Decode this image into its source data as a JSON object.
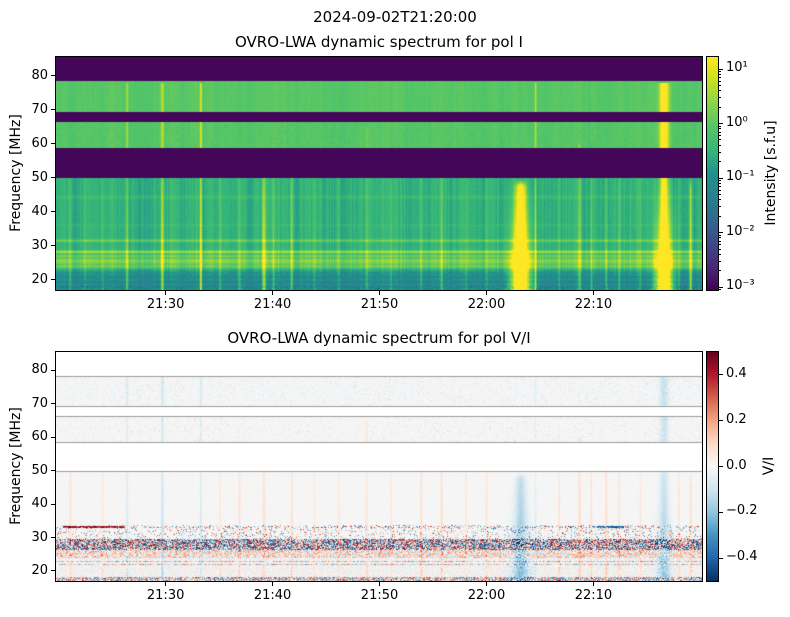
{
  "figure": {
    "suptitle": "2024-09-02T21:20:00",
    "background": "#ffffff"
  },
  "panels": [
    {
      "title": "OVRO-LWA dynamic spectrum for pol I",
      "ylabel": "Frequency [MHz]",
      "yticks": [
        20,
        30,
        40,
        50,
        60,
        70,
        80
      ],
      "xticks": [
        {
          "label": "21:30",
          "min": 10
        },
        {
          "label": "21:40",
          "min": 20
        },
        {
          "label": "21:50",
          "min": 30
        },
        {
          "label": "22:00",
          "min": 40
        },
        {
          "label": "22:10",
          "min": 50
        }
      ],
      "colorbar": {
        "label": "Intensity [s.f.u]",
        "cmap": "viridis",
        "scale": "log",
        "ticks": [
          {
            "label": "10¹",
            "log": 1
          },
          {
            "label": "10⁰",
            "log": 0
          },
          {
            "label": "10⁻¹",
            "log": -1
          },
          {
            "label": "10⁻²",
            "log": -2
          },
          {
            "label": "10⁻³",
            "log": -3
          }
        ]
      }
    },
    {
      "title": "OVRO-LWA dynamic spectrum for pol V/I",
      "ylabel": "Frequency [MHz]",
      "yticks": [
        20,
        30,
        40,
        50,
        60,
        70,
        80
      ],
      "xticks": [
        {
          "label": "21:30",
          "min": 10
        },
        {
          "label": "21:40",
          "min": 20
        },
        {
          "label": "21:50",
          "min": 30
        },
        {
          "label": "22:00",
          "min": 40
        },
        {
          "label": "22:10",
          "min": 50
        }
      ],
      "colorbar": {
        "label": "V/I",
        "cmap": "RdBu_r",
        "scale": "linear",
        "ticks": [
          {
            "label": "0.4",
            "value": 0.4
          },
          {
            "label": "0.2",
            "value": 0.2
          },
          {
            "label": "0.0",
            "value": 0.0
          },
          {
            "label": "−0.2",
            "value": -0.2
          },
          {
            "label": "−0.4",
            "value": -0.4
          }
        ]
      }
    }
  ],
  "chart_data": {
    "type": "heatmap",
    "title": "OVRO-LWA dynamic spectra (Stokes I and V/I)",
    "time_start": "21:20",
    "time_end": "22:20",
    "axis_cal": {
      "t0": -0.25,
      "t1": 60.15
    },
    "freq_range_mhz": [
      17.0,
      85.5
    ],
    "masked_bands_mhz": [
      [
        50.0,
        58.6
      ],
      [
        66.4,
        69.3
      ],
      [
        78.3,
        85.5
      ]
    ],
    "intensity_scale": {
      "type": "log",
      "min_sfu": 0.001,
      "max_sfu": 16,
      "units": "s.f.u",
      "cbar_log_top": 1.22,
      "cbar_log_bottom": -3.05
    },
    "vi_scale": {
      "min": -0.5,
      "max": 0.5
    },
    "rfi_lines": [
      {
        "f": 31.5,
        "a": 0.16,
        "w": 0.4
      },
      {
        "f": 28.2,
        "a": 0.26,
        "w": 0.4
      },
      {
        "f": 27.0,
        "a": 0.14,
        "w": 0.35
      },
      {
        "f": 25.5,
        "a": 0.17,
        "w": 0.9
      },
      {
        "f": 23.9,
        "a": 0.12,
        "w": 0.5
      },
      {
        "f": 44.3,
        "a": 0.05,
        "w": 0.5
      },
      {
        "f": 36.0,
        "a": 0.03,
        "w": 0.4
      },
      {
        "f": 20.8,
        "a": -0.05,
        "w": 0.3
      },
      {
        "f": 19.3,
        "a": -0.06,
        "w": 0.35
      },
      {
        "f": 18.0,
        "a": -0.05,
        "w": 0.3
      }
    ],
    "vi_features": {
      "red_line_mhz": 33.3,
      "red_line_t_min": [
        0.4,
        6.2
      ],
      "cyan_segment_mhz": 33.2,
      "cyan_segment_t_min": [
        50.3,
        52.9
      ],
      "speckle_bands_mhz": [
        [
          26.3,
          29.5
        ],
        [
          29.5,
          33.8
        ],
        [
          24.0,
          26.3
        ],
        [
          21.5,
          24.0
        ],
        [
          17.0,
          18.3
        ]
      ]
    },
    "events": [
      {
        "t": 1.1,
        "time": "21:21",
        "a": 0.18,
        "w": 0.12,
        "fhi": 50,
        "vi": 1,
        "va": 0.1
      },
      {
        "t": 2.5,
        "time": "21:22",
        "a": 0.1,
        "w": 0.1,
        "fhi": 50,
        "vi": 0,
        "va": 0.0
      },
      {
        "t": 4.1,
        "time": "21:24",
        "a": 0.14,
        "w": 0.1,
        "fhi": 50,
        "vi": 1,
        "va": 0.08
      },
      {
        "t": 6.4,
        "time": "21:26",
        "a": 0.3,
        "w": 0.12,
        "fhi": 78,
        "vi": -1,
        "va": 0.1
      },
      {
        "t": 9.7,
        "time": "21:30",
        "a": 0.38,
        "w": 0.14,
        "fhi": 78,
        "vi": -1,
        "va": 0.14
      },
      {
        "t": 13.3,
        "time": "21:33",
        "a": 0.5,
        "w": 0.1,
        "fhi": 78,
        "vi": -1,
        "va": 0.12
      },
      {
        "t": 15.1,
        "time": "21:35",
        "a": 0.15,
        "w": 0.1,
        "fhi": 50,
        "vi": 1,
        "va": 0.08
      },
      {
        "t": 16.9,
        "time": "21:37",
        "a": 0.22,
        "w": 0.12,
        "fhi": 50,
        "vi": 1,
        "va": 0.1
      },
      {
        "t": 19.2,
        "time": "21:39",
        "a": 0.42,
        "w": 0.16,
        "fhi": 55,
        "vi": 1,
        "va": 0.1
      },
      {
        "t": 20.1,
        "time": "21:40",
        "a": 0.16,
        "w": 0.1,
        "fhi": 50,
        "vi": 0,
        "va": 0.0
      },
      {
        "t": 21.8,
        "time": "21:42",
        "a": 0.24,
        "w": 0.12,
        "fhi": 50,
        "vi": 1,
        "va": 0.1
      },
      {
        "t": 23.9,
        "time": "21:44",
        "a": 0.13,
        "w": 0.1,
        "fhi": 50,
        "vi": 1,
        "va": 0.07
      },
      {
        "t": 26.2,
        "time": "21:46",
        "a": 0.13,
        "w": 0.1,
        "fhi": 50,
        "vi": 1,
        "va": 0.08
      },
      {
        "t": 28.8,
        "time": "21:49",
        "a": 0.15,
        "w": 0.12,
        "fhi": 65,
        "vi": 1,
        "va": 0.09
      },
      {
        "t": 31.1,
        "time": "21:51",
        "a": 0.13,
        "w": 0.1,
        "fhi": 50,
        "vi": 1,
        "va": 0.08
      },
      {
        "t": 33.9,
        "time": "21:54",
        "a": 0.17,
        "w": 0.1,
        "fhi": 50,
        "vi": 1,
        "va": 0.12
      },
      {
        "t": 35.8,
        "time": "21:56",
        "a": 0.2,
        "w": 0.12,
        "fhi": 50,
        "vi": 1,
        "va": 0.12
      },
      {
        "t": 38.1,
        "time": "21:58",
        "a": 0.13,
        "w": 0.1,
        "fhi": 50,
        "vi": 1,
        "va": 0.09
      },
      {
        "t": 40.0,
        "time": "22:00",
        "a": 0.15,
        "w": 0.1,
        "fhi": 50,
        "vi": 1,
        "va": 0.1
      },
      {
        "t": 43.2,
        "time": "22:03",
        "a": 0.85,
        "w": 0.5,
        "fhi": 47,
        "vi": -1,
        "va": 0.22,
        "big": true
      },
      {
        "t": 44.6,
        "time": "22:05",
        "a": 0.42,
        "w": 0.08,
        "fhi": 78,
        "vi": -1,
        "va": 0.08
      },
      {
        "t": 46.8,
        "time": "22:07",
        "a": 0.13,
        "w": 0.1,
        "fhi": 50,
        "vi": 1,
        "va": 0.1
      },
      {
        "t": 48.7,
        "time": "22:09",
        "a": 0.24,
        "w": 0.14,
        "fhi": 60,
        "vi": 1,
        "va": 0.12
      },
      {
        "t": 49.8,
        "time": "22:10",
        "a": 0.18,
        "w": 0.1,
        "fhi": 50,
        "vi": 1,
        "va": 0.1
      },
      {
        "t": 51.2,
        "time": "22:11",
        "a": 0.2,
        "w": 0.12,
        "fhi": 50,
        "vi": 1,
        "va": 0.12
      },
      {
        "t": 52.4,
        "time": "22:12",
        "a": 0.18,
        "w": 0.1,
        "fhi": 50,
        "vi": 1,
        "va": 0.1
      },
      {
        "t": 54.4,
        "time": "22:14",
        "a": 0.13,
        "w": 0.1,
        "fhi": 50,
        "vi": 1,
        "va": 0.08
      },
      {
        "t": 56.6,
        "time": "22:17",
        "a": 0.95,
        "w": 0.4,
        "fhi": 78,
        "vi": -1,
        "va": 0.18,
        "big": true
      },
      {
        "t": 58.0,
        "time": "22:18",
        "a": 0.16,
        "w": 0.1,
        "fhi": 50,
        "vi": 1,
        "va": 0.1
      },
      {
        "t": 59.1,
        "time": "22:19",
        "a": 0.38,
        "w": 0.12,
        "fhi": 47,
        "vi": 1,
        "va": 0.12
      }
    ],
    "colors": {
      "masked_band": "#440154",
      "upper_band_green": "#54c568",
      "burst_yellow": "#fde725",
      "vi_background": "#f7f7f7",
      "band_edge_gray": "#8c8c8c",
      "viridis_stops": [
        "#440154",
        "#482878",
        "#3e4989",
        "#31688e",
        "#26828e",
        "#21918c",
        "#35b779",
        "#54c568",
        "#89d548",
        "#c8e020",
        "#fde725"
      ],
      "rdbu_stops": [
        "#053061",
        "#2166ac",
        "#4393c3",
        "#92c5de",
        "#d1e5f0",
        "#f7f7f7",
        "#fddbc7",
        "#f4a582",
        "#d6604d",
        "#b2182b",
        "#67001f"
      ]
    }
  }
}
